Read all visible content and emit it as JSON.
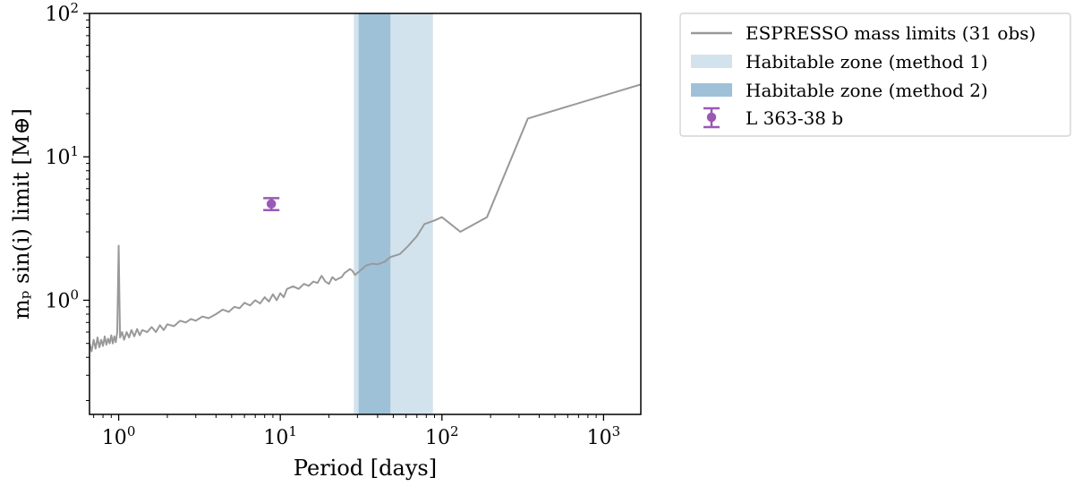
{
  "chart_data": {
    "type": "line",
    "xscale": "log",
    "yscale": "log",
    "xlim": [
      0.66,
      1700
    ],
    "ylim": [
      0.16,
      100
    ],
    "xlabel": "Period [days]",
    "ylabel": "mₚ sin(i) limit [M⊕]",
    "x_ticks": [
      {
        "value": 1,
        "base": "10",
        "exp": "0"
      },
      {
        "value": 10,
        "base": "10",
        "exp": "1"
      },
      {
        "value": 100,
        "base": "10",
        "exp": "2"
      },
      {
        "value": 1000,
        "base": "10",
        "exp": "3"
      }
    ],
    "y_ticks": [
      {
        "value": 1,
        "base": "10",
        "exp": "0"
      },
      {
        "value": 10,
        "base": "10",
        "exp": "1"
      },
      {
        "value": 100,
        "base": "10",
        "exp": "2"
      }
    ],
    "legend_position": "outside-right",
    "bands": [
      {
        "name": "Habitable zone (method 1)",
        "x_range": [
          28.5,
          88
        ],
        "color": "#d3e3ee"
      },
      {
        "name": "Habitable zone (method 2)",
        "x_range": [
          30.5,
          48
        ],
        "color": "#9fc1d8"
      }
    ],
    "series": [
      {
        "name": "ESPRESSO mass limits (31 obs)",
        "color": "#999999",
        "points": [
          [
            0.66,
            0.5
          ],
          [
            0.68,
            0.44
          ],
          [
            0.7,
            0.53
          ],
          [
            0.72,
            0.46
          ],
          [
            0.74,
            0.55
          ],
          [
            0.76,
            0.47
          ],
          [
            0.78,
            0.53
          ],
          [
            0.8,
            0.48
          ],
          [
            0.82,
            0.56
          ],
          [
            0.84,
            0.49
          ],
          [
            0.86,
            0.54
          ],
          [
            0.88,
            0.5
          ],
          [
            0.9,
            0.57
          ],
          [
            0.92,
            0.5
          ],
          [
            0.94,
            0.56
          ],
          [
            0.96,
            0.51
          ],
          [
            0.98,
            0.6
          ],
          [
            0.99,
            1.2
          ],
          [
            1.0,
            2.4
          ],
          [
            1.01,
            1.1
          ],
          [
            1.02,
            0.55
          ],
          [
            1.05,
            0.6
          ],
          [
            1.08,
            0.53
          ],
          [
            1.12,
            0.6
          ],
          [
            1.16,
            0.55
          ],
          [
            1.2,
            0.62
          ],
          [
            1.25,
            0.56
          ],
          [
            1.3,
            0.63
          ],
          [
            1.35,
            0.57
          ],
          [
            1.4,
            0.62
          ],
          [
            1.5,
            0.6
          ],
          [
            1.6,
            0.65
          ],
          [
            1.7,
            0.6
          ],
          [
            1.8,
            0.67
          ],
          [
            1.9,
            0.62
          ],
          [
            2.0,
            0.68
          ],
          [
            2.2,
            0.66
          ],
          [
            2.4,
            0.72
          ],
          [
            2.6,
            0.7
          ],
          [
            2.8,
            0.74
          ],
          [
            3.0,
            0.72
          ],
          [
            3.3,
            0.77
          ],
          [
            3.6,
            0.75
          ],
          [
            4.0,
            0.8
          ],
          [
            4.4,
            0.86
          ],
          [
            4.8,
            0.83
          ],
          [
            5.2,
            0.9
          ],
          [
            5.6,
            0.88
          ],
          [
            6.0,
            0.96
          ],
          [
            6.5,
            0.92
          ],
          [
            7.0,
            1.0
          ],
          [
            7.5,
            0.95
          ],
          [
            8.0,
            1.05
          ],
          [
            8.5,
            0.98
          ],
          [
            9.0,
            1.1
          ],
          [
            9.5,
            1.0
          ],
          [
            10.0,
            1.12
          ],
          [
            10.5,
            1.05
          ],
          [
            11.0,
            1.2
          ],
          [
            12.0,
            1.25
          ],
          [
            13.0,
            1.2
          ],
          [
            14.0,
            1.3
          ],
          [
            15.0,
            1.26
          ],
          [
            16.0,
            1.35
          ],
          [
            17.0,
            1.32
          ],
          [
            18.0,
            1.48
          ],
          [
            19.0,
            1.35
          ],
          [
            20.0,
            1.3
          ],
          [
            21.0,
            1.45
          ],
          [
            22.0,
            1.38
          ],
          [
            23.0,
            1.42
          ],
          [
            24.0,
            1.45
          ],
          [
            25.0,
            1.55
          ],
          [
            26.0,
            1.6
          ],
          [
            27.0,
            1.65
          ],
          [
            28.0,
            1.6
          ],
          [
            29.0,
            1.5
          ],
          [
            31.0,
            1.6
          ],
          [
            34.0,
            1.75
          ],
          [
            37.0,
            1.8
          ],
          [
            40.0,
            1.78
          ],
          [
            44.0,
            1.85
          ],
          [
            48.0,
            2.0
          ],
          [
            55.0,
            2.1
          ],
          [
            62.0,
            2.4
          ],
          [
            70.0,
            2.8
          ],
          [
            78.0,
            3.4
          ],
          [
            90.0,
            3.6
          ],
          [
            100.0,
            3.8
          ],
          [
            130.0,
            3.0
          ],
          [
            190.0,
            3.8
          ],
          [
            340.0,
            18.5
          ],
          [
            1700.0,
            32.0
          ]
        ]
      }
    ],
    "points": [
      {
        "name": "L 363-38 b",
        "x": 8.8,
        "y": 4.7,
        "yerr": [
          0.45,
          0.45
        ],
        "color": "#9b59b6"
      }
    ]
  }
}
